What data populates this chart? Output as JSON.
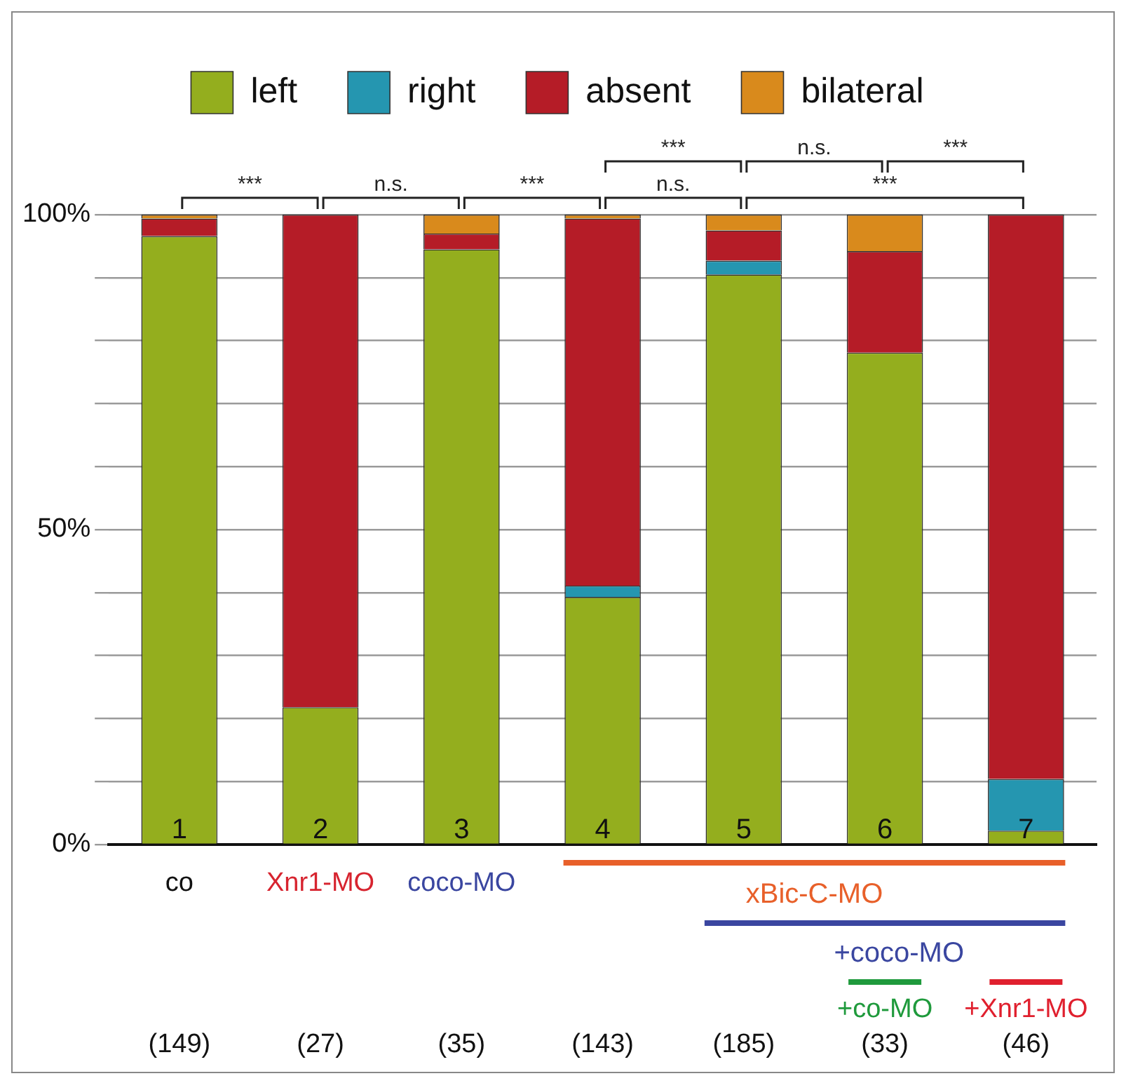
{
  "chart_data": {
    "type": "bar",
    "stacked": true,
    "categories": [
      "1",
      "2",
      "3",
      "4",
      "5",
      "6",
      "7"
    ],
    "series": [
      {
        "name": "left",
        "color": "#94ae1e",
        "values": [
          96.6,
          21.8,
          94.5,
          39.3,
          90.5,
          78.1,
          2.2
        ]
      },
      {
        "name": "right",
        "color": "#2596b0",
        "values": [
          0,
          0,
          0,
          1.8,
          2.2,
          0,
          8.2
        ]
      },
      {
        "name": "absent",
        "color": "#b51c27",
        "values": [
          2.8,
          78.2,
          2.5,
          58.3,
          4.8,
          16.1,
          89.6
        ]
      },
      {
        "name": "bilateral",
        "color": "#d98a1c",
        "values": [
          0.6,
          0,
          3.0,
          0.6,
          2.5,
          5.8,
          0
        ]
      }
    ],
    "ylim": [
      0,
      100
    ],
    "yticks": [
      {
        "value": 0,
        "label": "0%"
      },
      {
        "value": 10,
        "label": null
      },
      {
        "value": 20,
        "label": null
      },
      {
        "value": 30,
        "label": null
      },
      {
        "value": 40,
        "label": null
      },
      {
        "value": 50,
        "label": "50%"
      },
      {
        "value": 60,
        "label": null
      },
      {
        "value": 70,
        "label": null
      },
      {
        "value": 80,
        "label": null
      },
      {
        "value": 90,
        "label": null
      },
      {
        "value": 100,
        "label": "100%"
      }
    ],
    "grid": "y",
    "legend": "top",
    "annotations": [
      "***",
      "n.s.",
      "***",
      "n.s.",
      "***",
      "***",
      "n.s.",
      "***",
      "co",
      "Xnr1-MO",
      "coco-MO",
      "xBic-C-MO",
      "+coco-MO",
      "+co-MO",
      "+Xnr1-MO",
      "(149)",
      "(27)",
      "(35)",
      "(143)",
      "(185)",
      "(33)",
      "(46)"
    ]
  }
}
